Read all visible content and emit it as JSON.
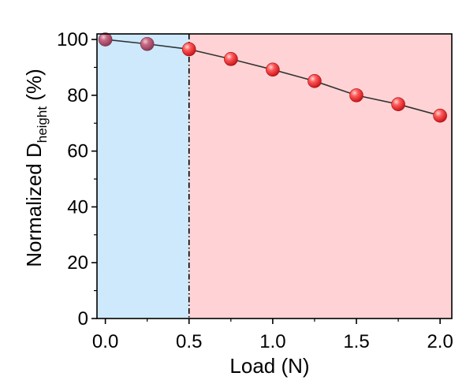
{
  "chart_data": {
    "type": "scatter",
    "xlabel": "Load (N)",
    "ylabel": {
      "prefix": "Normalized D",
      "subscript": "height",
      "suffix": " (%)"
    },
    "xlim": [
      -0.05,
      2.07
    ],
    "ylim": [
      0,
      102
    ],
    "x_ticks": [
      0.0,
      0.5,
      1.0,
      1.5,
      2.0
    ],
    "x_tick_labels": [
      "0.0",
      "0.5",
      "1.0",
      "1.5",
      "2.0"
    ],
    "y_ticks": [
      0,
      20,
      40,
      60,
      80,
      100
    ],
    "y_tick_labels": [
      "0",
      "20",
      "40",
      "60",
      "80",
      "100"
    ],
    "grid": false,
    "legend": "none",
    "series": [
      {
        "x": [
          0.0,
          0.25,
          0.5,
          0.75,
          1.0,
          1.25,
          1.5,
          1.75,
          2.0
        ],
        "y": [
          100,
          98.4,
          96.5,
          93,
          89.2,
          85.1,
          80,
          76.8,
          72.7
        ],
        "marker": "sphere",
        "line": "connected"
      }
    ],
    "regions": [
      {
        "from": -0.05,
        "to": 0.5,
        "color": "#cde9fb"
      },
      {
        "from": 0.5,
        "to": 2.07,
        "color": "#ffd3d5"
      }
    ],
    "threshold_line": {
      "x": 0.5,
      "style": "dash-dot"
    },
    "colors": {
      "marker_blue_zone": "#b05a72",
      "marker_red_zone": "#ee2a2f",
      "line": "#333333"
    }
  }
}
